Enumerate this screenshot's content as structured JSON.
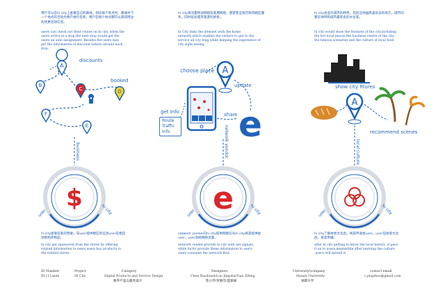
{
  "panels": [
    {
      "intro_cn": "用户可以在hi city上查看自己的路线，到达每个地点时，路线中下一个地点的活动为用户进行签到，用户在每个地点都可以获得周边的优惠活动信息。",
      "intro_en": "users can check out their routes on hi city. when the users arrive at a stop,the next stop would get the users an auto assignment. Besides,the users may get the information of discount tickets around each stop.",
      "labels": {
        "discounts": "discounts",
        "booked": "booked",
        "business": "business",
        "user": "user",
        "hicity": "hi city"
      },
      "pins": [
        "A",
        "B",
        "C",
        "D",
        "F",
        "E"
      ],
      "center_symbol": "$",
      "outro_cn": "hi city接受店家的赞助，向user提供相应的信息user在相应场景购买物品。",
      "outro_en": "hi city get sponsored from the stores by offering related information to users.users buy products in the related stores."
    },
    {
      "intro_cn": "hi city将流量移动网络及家用网络，使游客全程可获得相应服务，同时延续城市旅游的感受。",
      "intro_en": "hi City links the internet with the home network,which enables the visitors to get to the service all city long while keeping the experience of city sight-seeing.",
      "labels": {
        "choose_place": "choose place",
        "update": "update",
        "share": "share",
        "get_info": "get Info",
        "network_vendor": "network vendor",
        "user": "user",
        "hicity": "hi city"
      },
      "info_box": [
        "Route",
        "Traffic",
        "Info"
      ],
      "pins": [
        "A"
      ],
      "center_symbol": "e",
      "outro_cn": "network vonder向hi city提供网络信号hi city将其提供给user，user消耗网络流量。",
      "outro_en": "network vender provide hi city with net signals, while hicity provide these information to users. users consume the network flow."
    },
    {
      "intro_cn": "hi city会显示城市的特色，包括当地居民喜欢去的地方，城市的繁华地带和城市最有名的文化等。",
      "intro_en": "hi city would show the features of the city,including the hot local places,the business centre of the city , the famous scenaries and the culture of local food.",
      "labels": {
        "show_city_fitures": "show city fitures",
        "recommend_scenes": "recommend scenes",
        "local_culture": "local culture",
        "user": "user",
        "hicity": "hi city"
      },
      "pins": [
        "A"
      ],
      "outro_cn": "hi city了解本地文化后，将其传递给user，user在接受文化后，将其传播。",
      "outro_en": "after hi city getting to know the local history ,it pass it on to users.meanwhile,after learning the culture ,users will spread it."
    }
  ],
  "footer": {
    "headers": [
      "ID Number",
      "Project",
      "Category",
      "Designers",
      "University\\company",
      "contact email"
    ],
    "id": "B1111ands",
    "project": "Hi City",
    "category_en": "Digital Products and Service Design",
    "category_cn": "数字产品与服务设计",
    "designers_en": "Chen Xiaohuan\\Luo Jingsha\\Tian Zifeng",
    "designers_cn": "陈小环/罗静莎/田紫峰",
    "university_en": "Hunan University",
    "university_cn": "湖南大学",
    "email": "c.jingshuo@gmail.com"
  },
  "colors": {
    "primary": "#1f63b8",
    "red": "#d9262a",
    "yellow": "#f2d12b",
    "ring_grey": "#d6dbe3",
    "palm_green": "#3f9a3c",
    "palm_orange": "#e38a22"
  }
}
